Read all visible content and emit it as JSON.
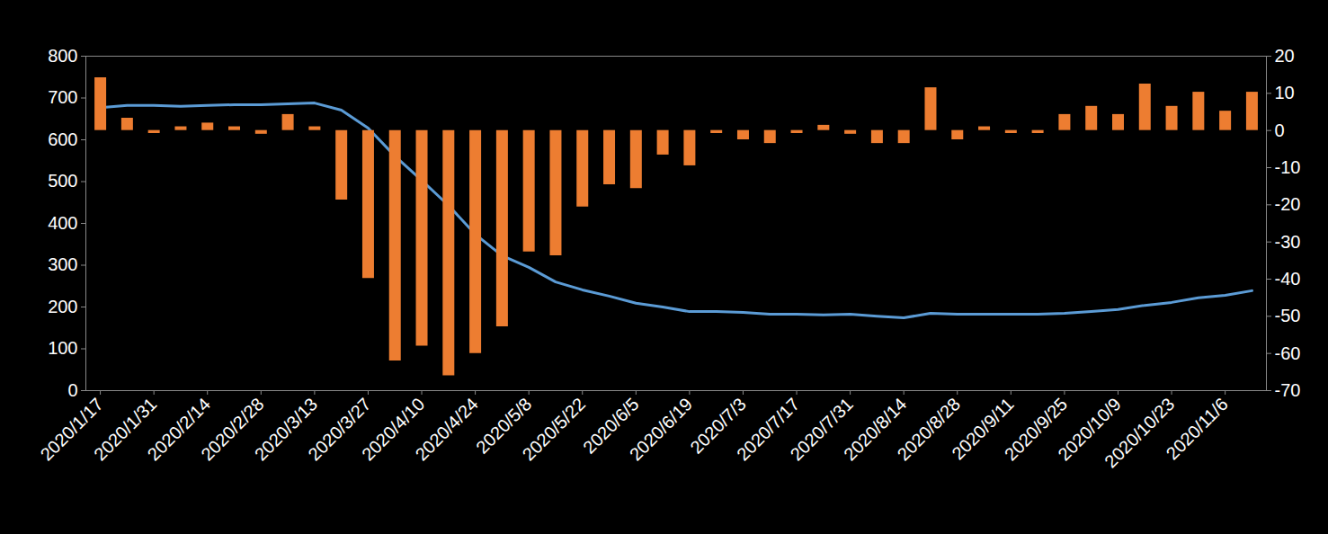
{
  "chart_data": {
    "type": "bar",
    "categories": [
      "2020/1/17",
      null,
      "2020/1/31",
      null,
      "2020/2/14",
      null,
      "2020/2/28",
      null,
      "2020/3/13",
      null,
      "2020/3/27",
      null,
      "2020/4/10",
      null,
      "2020/4/24",
      null,
      "2020/5/8",
      null,
      "2020/5/22",
      null,
      "2020/6/5",
      null,
      "2020/6/19",
      null,
      "2020/7/3",
      null,
      "2020/7/17",
      null,
      "2020/7/31",
      null,
      "2020/8/14",
      null,
      "2020/8/28",
      null,
      "2020/9/11",
      null,
      "2020/9/25",
      null,
      "2020/10/9",
      null,
      "2020/10/23",
      null,
      "2020/11/6",
      null
    ],
    "series": [
      {
        "type": "line",
        "color": "#5B9BD5",
        "values": [
          677,
          682,
          682,
          680,
          682,
          684,
          684,
          686,
          688,
          671,
          628,
          561,
          503,
          443,
          374,
          323,
          295,
          260,
          241,
          226,
          209,
          200,
          189,
          189,
          187,
          183,
          183,
          181,
          183,
          178,
          174,
          185,
          183,
          183,
          183,
          183,
          185,
          189,
          194,
          204,
          211,
          222,
          228,
          239
        ]
      },
      {
        "type": "bar",
        "color": "#ED7D31",
        "axis": "y2",
        "values": [
          14.2,
          3.3,
          -0.8,
          1,
          2,
          1,
          -1,
          4.3,
          1,
          -18.7,
          -39.8,
          -62,
          -58,
          -66,
          -60,
          -52.8,
          -32.7,
          -33.7,
          -20.6,
          -14.6,
          -15.6,
          -6.6,
          -9.5,
          -0.8,
          -2.5,
          -3.5,
          -0.8,
          1.4,
          -1,
          -3.5,
          -3.5,
          11.5,
          -2.5,
          1,
          -0.8,
          -0.8,
          4.3,
          6.5,
          4.3,
          12.5,
          6.5,
          10.3,
          5.2,
          10.3
        ]
      }
    ],
    "ylim": [
      0,
      800
    ],
    "yticks": [
      0,
      100,
      200,
      300,
      400,
      500,
      600,
      700,
      800
    ],
    "y2lim": [
      -70,
      20
    ],
    "y2ticks": [
      -70,
      -60,
      -50,
      -40,
      -30,
      -20,
      -10,
      0,
      10,
      20
    ]
  }
}
